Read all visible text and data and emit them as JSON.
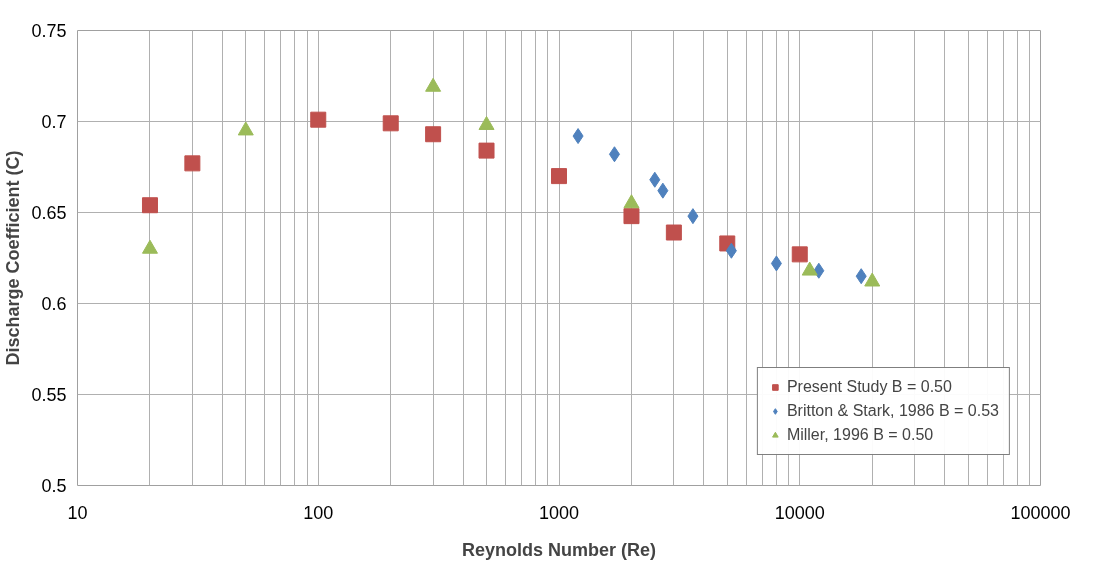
{
  "chart_data": {
    "type": "scatter",
    "xlabel": "Reynolds Number (Re)",
    "ylabel": "Discharge Coefficient (C)",
    "log": "x",
    "xlim": [
      10,
      100000
    ],
    "xticks": [
      10,
      100,
      1000,
      10000,
      100000
    ],
    "ylim": [
      0.5,
      0.75
    ],
    "yticks": [
      0.5,
      0.55,
      0.6,
      0.65,
      0.7,
      0.75
    ],
    "grid": true,
    "legend": "bottom right",
    "series": [
      {
        "name": "Present Study B = 0.50",
        "color": "#c0504d",
        "marker": "square",
        "x": [
          20,
          30,
          100,
          200,
          300,
          500,
          1000,
          2000,
          3000,
          5000,
          10000
        ],
        "values": [
          0.654,
          0.677,
          0.701,
          0.699,
          0.693,
          0.684,
          0.67,
          0.648,
          0.639,
          0.633,
          0.627
        ]
      },
      {
        "name": "Britton & Stark, 1986 B = 0.53",
        "color": "#4f81bd",
        "marker": "diamond",
        "x": [
          1200,
          1700,
          2500,
          2700,
          3600,
          5200,
          8000,
          12000,
          18000
        ],
        "values": [
          0.692,
          0.682,
          0.668,
          0.662,
          0.648,
          0.629,
          0.622,
          0.618,
          0.615
        ]
      },
      {
        "name": "Miller, 1996 B = 0.50",
        "color": "#9bbb59",
        "marker": "triangle",
        "x": [
          20,
          50,
          300,
          500,
          2000,
          11000,
          20000
        ],
        "values": [
          0.63,
          0.695,
          0.719,
          0.698,
          0.655,
          0.618,
          0.612
        ]
      }
    ]
  }
}
